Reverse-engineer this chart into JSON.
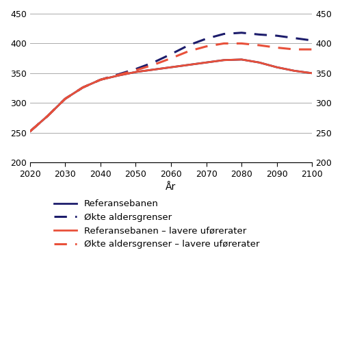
{
  "years": [
    2020,
    2025,
    2030,
    2035,
    2040,
    2045,
    2050,
    2055,
    2060,
    2065,
    2070,
    2075,
    2080,
    2085,
    2090,
    2095,
    2100
  ],
  "referansebanen": [
    252,
    278,
    307,
    326,
    339,
    346,
    352,
    356,
    360,
    364,
    368,
    372,
    373,
    368,
    360,
    354,
    350
  ],
  "okte_aldersgrenser": [
    252,
    278,
    307,
    326,
    339,
    348,
    357,
    368,
    382,
    397,
    408,
    416,
    418,
    415,
    413,
    409,
    405
  ],
  "ref_lavere_uforerater": [
    252,
    278,
    307,
    326,
    339,
    346,
    352,
    356,
    360,
    364,
    368,
    372,
    373,
    368,
    360,
    354,
    350
  ],
  "okte_ald_lavere_uforerater": [
    252,
    278,
    307,
    326,
    339,
    347,
    355,
    364,
    375,
    387,
    395,
    400,
    400,
    397,
    393,
    390,
    390
  ],
  "ref_color": "#1c1c6b",
  "okte_color": "#1c1c6b",
  "ref_lav_color": "#e8503a",
  "okte_lav_color": "#e8503a",
  "ylim": [
    200,
    450
  ],
  "yticks": [
    200,
    250,
    300,
    350,
    400,
    450
  ],
  "xlim": [
    2020,
    2100
  ],
  "xticks": [
    2020,
    2030,
    2040,
    2050,
    2060,
    2070,
    2080,
    2090,
    2100
  ],
  "xlabel": "År",
  "legend_labels": [
    "Referansebanen",
    "Økte aldersgrenser",
    "Referansebanen – lavere uførerater",
    "Økte aldersgrenser – lavere uførerater"
  ],
  "linewidth_solid": 2.0,
  "linewidth_dashed": 2.2,
  "grid_color": "#aaaaaa",
  "dash_style": [
    6,
    4
  ]
}
